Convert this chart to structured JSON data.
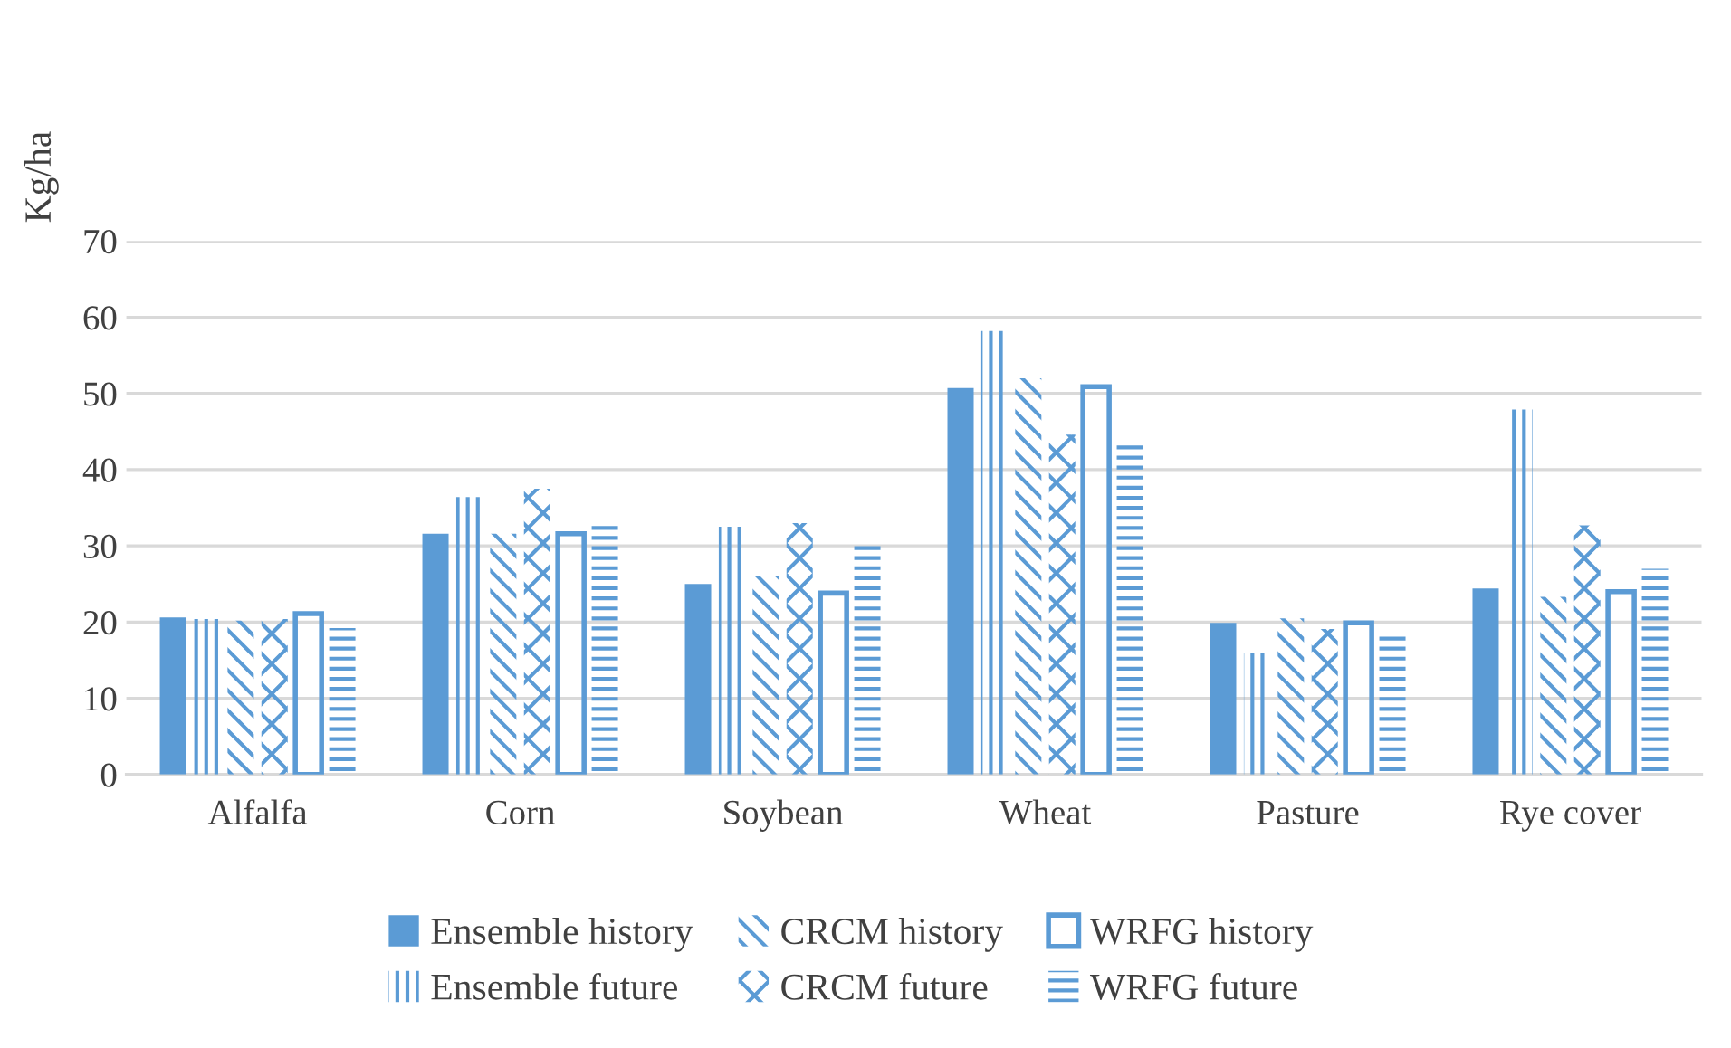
{
  "chart_data": {
    "type": "bar",
    "ylabel": "Kg/ha",
    "categories": [
      "Alfalfa",
      "Corn",
      "Soybean",
      "Wheat",
      "Pasture",
      "Rye cover"
    ],
    "series": [
      {
        "name": "Ensemble history",
        "color": "#5b9bd5",
        "values": [
          20.6,
          31.6,
          25.0,
          50.7,
          19.9,
          24.4
        ]
      },
      {
        "name": "Ensemble future",
        "color": "#5b9bd5",
        "values": [
          20.4,
          36.4,
          32.5,
          58.2,
          15.9,
          47.9
        ]
      },
      {
        "name": "CRCM history",
        "color": "#5b9bd5",
        "values": [
          20.2,
          31.6,
          26.0,
          52.0,
          20.5,
          23.3
        ]
      },
      {
        "name": "CRCM future",
        "color": "#5b9bd5",
        "values": [
          20.4,
          37.5,
          33.0,
          44.6,
          19.1,
          32.7
        ]
      },
      {
        "name": "WRFG history",
        "color": "#5b9bd5",
        "values": [
          21.1,
          31.6,
          23.8,
          50.9,
          19.9,
          24.0
        ]
      },
      {
        "name": "WRFG future",
        "color": "#5b9bd5",
        "values": [
          19.2,
          33.0,
          30.5,
          43.2,
          18.5,
          27.0
        ]
      }
    ],
    "ylim": [
      0,
      70
    ],
    "yticks": [
      0,
      10,
      20,
      30,
      40,
      50,
      60,
      70
    ],
    "grid": "y",
    "legend": "bottom"
  }
}
